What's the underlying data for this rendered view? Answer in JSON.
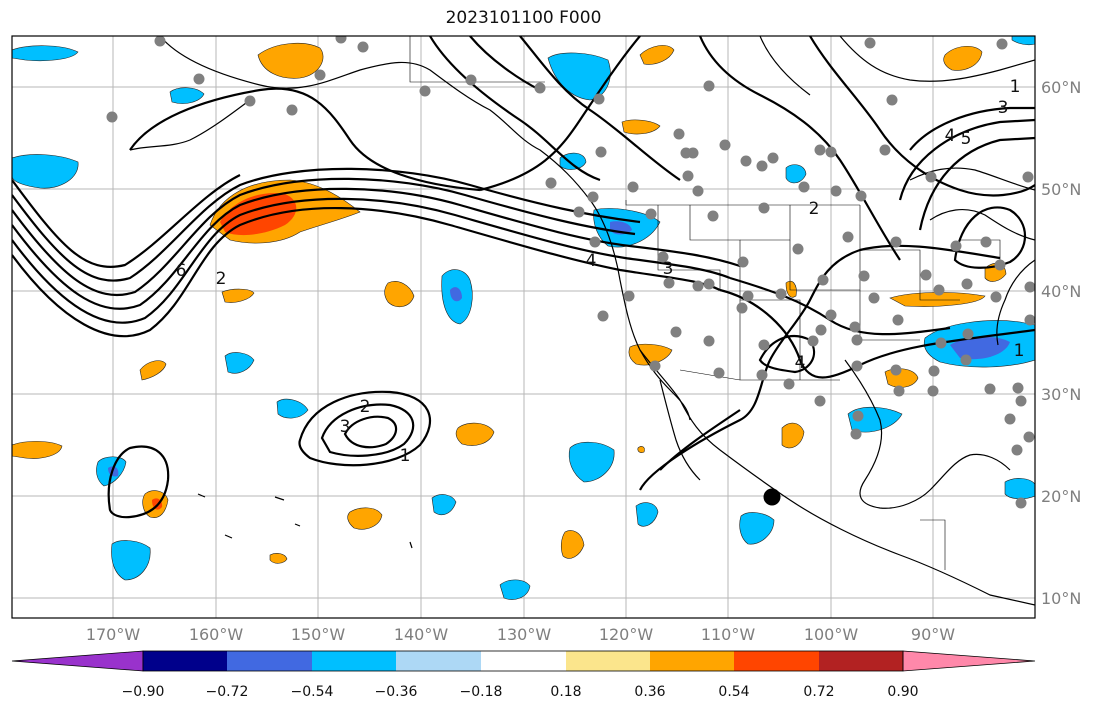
{
  "map": {
    "title": "2023101100 F000",
    "lat_ticks": [
      "60°N",
      "50°N",
      "40°N",
      "30°N",
      "20°N",
      "10°N"
    ],
    "lon_ticks": [
      "170°W",
      "160°W",
      "150°W",
      "140°W",
      "130°W",
      "120°W",
      "110°W",
      "100°W",
      "90°W"
    ],
    "contour_labels": [
      "1",
      "3",
      "4",
      "5",
      "2",
      "6",
      "4",
      "3",
      "2",
      "1",
      "2",
      "3",
      "4",
      "1"
    ],
    "colors": {
      "fill_pos_036": "#ffa500",
      "fill_pos_054": "#ff4500",
      "fill_neg_036": "#00bfff",
      "fill_neg_054": "#4169e1",
      "station_dot": "#808080",
      "marker": "#000000"
    }
  },
  "colorbar": {
    "labels": [
      "−0.90",
      "−0.72",
      "−0.54",
      "−0.36",
      "−0.18",
      "0.18",
      "0.36",
      "0.54",
      "0.72",
      "0.90"
    ],
    "colors": [
      "#9932cc",
      "#00008b",
      "#4169e1",
      "#00bfff",
      "#add8f5",
      "#ffffff",
      "#fbe58c",
      "#ffa500",
      "#ff4500",
      "#b22222",
      "#ff88aa"
    ]
  }
}
